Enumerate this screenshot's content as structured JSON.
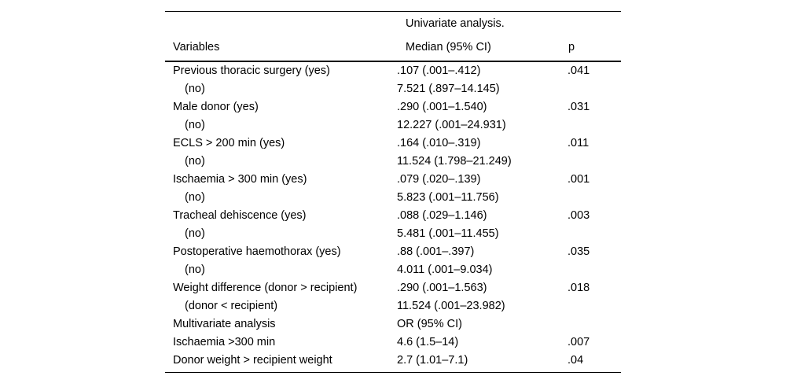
{
  "colors": {
    "text": "#000000",
    "background": "#ffffff",
    "rule": "#000000"
  },
  "table": {
    "group_header": "Univariate analysis.",
    "columns": {
      "variables": "Variables",
      "median": "Median (95% CI)",
      "p": "p"
    },
    "rows": [
      {
        "variable": "Previous thoracic surgery (yes)",
        "indent": false,
        "median": ".107 (.001–.412)",
        "p": ".041"
      },
      {
        "variable": "(no)",
        "indent": true,
        "median": "7.521 (.897–14.145)",
        "p": ""
      },
      {
        "variable": "Male donor (yes)",
        "indent": false,
        "median": ".290 (.001–1.540)",
        "p": ".031"
      },
      {
        "variable": "(no)",
        "indent": true,
        "median": "12.227 (.001–24.931)",
        "p": ""
      },
      {
        "variable": "ECLS > 200 min (yes)",
        "indent": false,
        "median": ".164 (.010–.319)",
        "p": ".011"
      },
      {
        "variable": "(no)",
        "indent": true,
        "median": "11.524 (1.798–21.249)",
        "p": ""
      },
      {
        "variable": "Ischaemia > 300 min (yes)",
        "indent": false,
        "median": ".079 (.020–.139)",
        "p": ".001"
      },
      {
        "variable": "(no)",
        "indent": true,
        "median": "5.823 (.001–11.756)",
        "p": ""
      },
      {
        "variable": "Tracheal dehiscence (yes)",
        "indent": false,
        "median": ".088 (.029–1.146)",
        "p": ".003"
      },
      {
        "variable": "(no)",
        "indent": true,
        "median": "5.481 (.001–11.455)",
        "p": ""
      },
      {
        "variable": "Postoperative haemothorax (yes)",
        "indent": false,
        "median": ".88 (.001–.397)",
        "p": ".035"
      },
      {
        "variable": "(no)",
        "indent": true,
        "median": "4.011 (.001–9.034)",
        "p": ""
      },
      {
        "variable": "Weight difference (donor > recipient)",
        "indent": false,
        "median": ".290 (.001–1.563)",
        "p": ".018"
      },
      {
        "variable": "(donor < recipient)",
        "indent": true,
        "median": "11.524 (.001–23.982)",
        "p": ""
      },
      {
        "variable": "Multivariate analysis",
        "indent": false,
        "median": "OR (95% CI)",
        "p": ""
      },
      {
        "variable": "Ischaemia >300 min",
        "indent": false,
        "median": "4.6 (1.5–14)",
        "p": ".007"
      },
      {
        "variable": "Donor weight > recipient weight",
        "indent": false,
        "median": "2.7 (1.01–7.1)",
        "p": ".04"
      }
    ]
  }
}
